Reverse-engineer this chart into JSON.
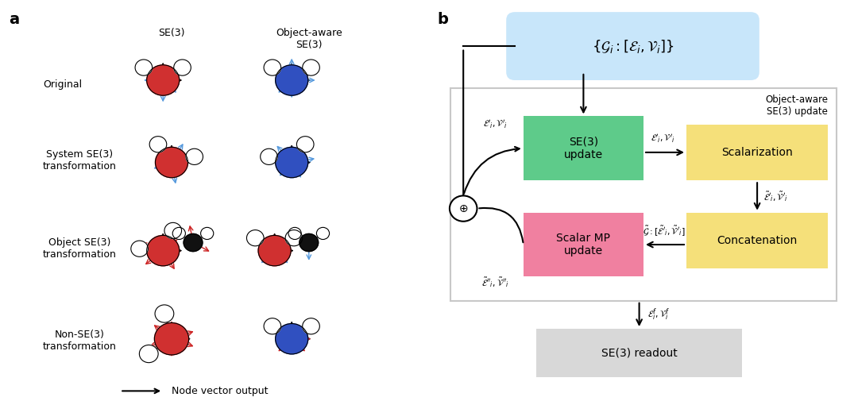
{
  "fig_width": 10.8,
  "fig_height": 5.05,
  "panel_a_label": "a",
  "panel_b_label": "b",
  "panel_a_col_labels": [
    "SE(3)",
    "Object-aware\nSE(3)"
  ],
  "panel_a_row_labels": [
    "Original",
    "System SE(3)\ntransformation",
    "Object SE(3)\ntransformation",
    "Non-SE(3)\ntransformation"
  ],
  "panel_a_legend": "→  Node vector output",
  "panel_b_top_box_text": "{$\\mathcal{G}_i : [\\mathcal{E}_i, \\mathcal{V}_i]$}",
  "panel_b_top_box_color": "#c8e6fa",
  "panel_b_se3_box_text": "SE(3)\nupdate",
  "panel_b_se3_box_color": "#5ecb8a",
  "panel_b_scalar_box_text": "Scalar MP\nupdate",
  "panel_b_scalar_box_color": "#f080a0",
  "panel_b_scalar_box_color2": "#f088b0",
  "panel_b_scalarization_text": "Scalarization",
  "panel_b_scalarization_color": "#f5e07a",
  "panel_b_concatenation_text": "Concatenation",
  "panel_b_concatenation_color": "#f5e07a",
  "panel_b_readout_text": "SE(3) readout",
  "panel_b_readout_color": "#d8d8d8",
  "panel_b_outer_label": "Object-aware\nSE(3) update",
  "panel_b_outer_box_color": "#c8c8c8"
}
